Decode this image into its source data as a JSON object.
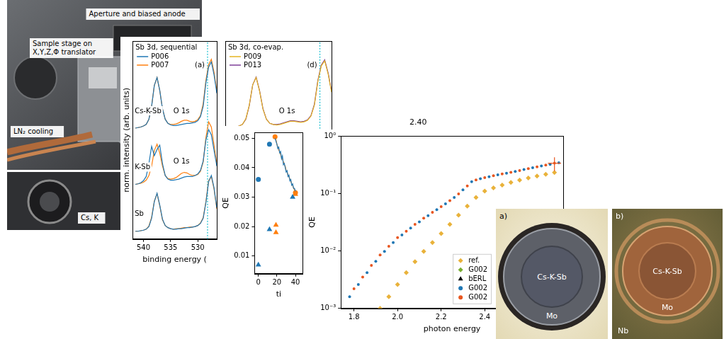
{
  "chart_data": [
    {
      "type": "line",
      "title": "Sb 3d, sequential",
      "panel_label": "(a)",
      "x_label": "binding energy (",
      "y_label": "norm. intensity (arb. units)",
      "xlim": [
        542,
        526.5
      ],
      "xticks": [
        540,
        535,
        530
      ],
      "ylim": [
        -0.1,
        3.7
      ],
      "tick_labels": "x",
      "grid": false,
      "legend": "upper left",
      "reference_x": 528.2,
      "x": [
        541.5,
        541,
        540.5,
        540,
        539.5,
        539,
        538.5,
        538,
        537.5,
        537,
        536.5,
        536,
        535.5,
        535,
        534.5,
        534,
        533.5,
        533,
        532.5,
        532,
        531.5,
        531,
        530.5,
        530,
        529.5,
        529,
        528.5,
        528,
        527.5,
        527,
        526.5
      ],
      "rows": [
        {
          "label": "Cs-K-Sb",
          "series": [
            {
              "name": "P006",
              "color": "#1f77b4",
              "values": [
                2.03,
                2.04,
                2.05,
                2.07,
                2.1,
                2.2,
                2.45,
                2.85,
                3.0,
                2.75,
                2.4,
                2.2,
                2.12,
                2.09,
                2.08,
                2.08,
                2.09,
                2.1,
                2.11,
                2.12,
                2.12,
                2.13,
                2.14,
                2.17,
                2.25,
                2.45,
                2.9,
                3.2,
                3.3,
                3.05,
                2.7
              ]
            },
            {
              "name": "P007",
              "color": "#ff7f0e",
              "values": [
                2.03,
                2.04,
                2.05,
                2.07,
                2.1,
                2.2,
                2.45,
                2.85,
                3.0,
                2.75,
                2.4,
                2.2,
                2.12,
                2.1,
                2.1,
                2.11,
                2.13,
                2.16,
                2.18,
                2.18,
                2.16,
                2.15,
                2.16,
                2.19,
                2.27,
                2.5,
                2.95,
                3.25,
                3.35,
                3.1,
                2.75
              ]
            }
          ]
        },
        {
          "label": "K-Sb",
          "series": [
            {
              "name": "P006",
              "color": "#1f77b4",
              "values": [
                0.95,
                0.96,
                0.98,
                1.02,
                1.1,
                1.35,
                1.68,
                1.5,
                1.62,
                1.7,
                1.35,
                1.12,
                1.05,
                1.03,
                1.03,
                1.04,
                1.05,
                1.07,
                1.09,
                1.1,
                1.1,
                1.1,
                1.12,
                1.15,
                1.22,
                1.4,
                1.8,
                2.0,
                1.9,
                1.6,
                1.3
              ]
            },
            {
              "name": "P007",
              "color": "#ff7f0e",
              "values": [
                0.95,
                0.96,
                0.97,
                0.99,
                1.03,
                1.12,
                1.3,
                1.6,
                1.72,
                1.55,
                1.3,
                1.12,
                1.06,
                1.05,
                1.06,
                1.08,
                1.12,
                1.16,
                1.18,
                1.17,
                1.14,
                1.12,
                1.12,
                1.14,
                1.2,
                1.38,
                1.85,
                2.15,
                2.05,
                1.7,
                1.35
              ]
            }
          ]
        },
        {
          "label": "Sb",
          "series": [
            {
              "name": "P006",
              "color": "#1f77b4",
              "values": [
                0.05,
                0.05,
                0.06,
                0.07,
                0.09,
                0.14,
                0.3,
                0.62,
                0.78,
                0.55,
                0.28,
                0.16,
                0.12,
                0.1,
                0.09,
                0.09,
                0.1,
                0.1,
                0.11,
                0.12,
                0.12,
                0.13,
                0.14,
                0.16,
                0.2,
                0.3,
                0.6,
                1.0,
                1.12,
                0.88,
                0.5
              ]
            },
            {
              "name": "P007",
              "color": "#ff7f0e",
              "values": [
                0.05,
                0.05,
                0.06,
                0.07,
                0.09,
                0.15,
                0.32,
                0.63,
                0.77,
                0.54,
                0.27,
                0.16,
                0.12,
                0.1,
                0.09,
                0.1,
                0.1,
                0.11,
                0.12,
                0.12,
                0.13,
                0.13,
                0.14,
                0.16,
                0.21,
                0.31,
                0.62,
                1.02,
                1.1,
                0.86,
                0.48
              ]
            }
          ]
        }
      ],
      "annotations": [
        {
          "text": "O 1s",
          "x": 533,
          "y": 2.35
        },
        {
          "text": "O 1s",
          "x": 533,
          "y": 1.38
        }
      ]
    },
    {
      "type": "line",
      "title": "Sb 3d, co-evap.",
      "panel_label": "(d)",
      "xlim": [
        542,
        526.5
      ],
      "ylim": [
        -0.1,
        3.7
      ],
      "tick_labels": false,
      "grid": false,
      "legend": "upper left",
      "reference_x": 528.2,
      "x": [
        541.5,
        541,
        540.5,
        540,
        539.5,
        539,
        538.5,
        538,
        537.5,
        537,
        536.5,
        536,
        535.5,
        535,
        534.5,
        534,
        533.5,
        533,
        532.5,
        532,
        531.5,
        531,
        530.5,
        530,
        529.5,
        529,
        528.5,
        528,
        527.5,
        527,
        526.5
      ],
      "series": [
        {
          "name": "P009",
          "color": "#e6b422",
          "values": [
            2.03,
            2.04,
            2.05,
            2.07,
            2.1,
            2.21,
            2.47,
            2.86,
            3.0,
            2.74,
            2.39,
            2.2,
            2.12,
            2.1,
            2.09,
            2.1,
            2.12,
            2.14,
            2.16,
            2.16,
            2.15,
            2.14,
            2.15,
            2.18,
            2.26,
            2.47,
            2.92,
            3.22,
            3.32,
            3.07,
            2.72
          ]
        },
        {
          "name": "P013",
          "color": "#7e3f98",
          "values": [
            2.03,
            2.04,
            2.05,
            2.07,
            2.1,
            2.2,
            2.46,
            2.86,
            3.01,
            2.75,
            2.4,
            2.2,
            2.12,
            2.1,
            2.1,
            2.11,
            2.13,
            2.15,
            2.17,
            2.17,
            2.16,
            2.15,
            2.16,
            2.19,
            2.27,
            2.49,
            2.94,
            3.24,
            3.34,
            3.09,
            2.74
          ]
        }
      ],
      "annotations": [
        {
          "text": "O 1s",
          "x": 533,
          "y": 2.35
        }
      ]
    },
    {
      "type": "scatter",
      "x_label": "ti",
      "y_label": "QE",
      "xlim": [
        -4,
        48
      ],
      "xticks": [
        0,
        20,
        40
      ],
      "ylim": [
        0.004,
        0.052
      ],
      "yticks": [
        0.01,
        0.02,
        0.03,
        0.04,
        0.05
      ],
      "grid": false,
      "series": [
        {
          "color": "#1f77b4",
          "marker": "circle",
          "line_style": "none",
          "x": [
            0,
            12
          ],
          "values": [
            0.036,
            0.048
          ]
        },
        {
          "color": "#1f77b4",
          "marker": "triangle",
          "line_style": "none",
          "x": [
            0,
            12,
            37
          ],
          "values": [
            0.007,
            0.019,
            0.03
          ]
        },
        {
          "color": "#ff7f0e",
          "marker": "triangle",
          "line_style": "none",
          "x": [
            19,
            19,
            40
          ],
          "values": [
            0.018,
            0.0205,
            0.031
          ]
        },
        {
          "color": "#1f77b4",
          "marker": "none",
          "line_style": "solid",
          "x": [
            18,
            19,
            20,
            21,
            22,
            23,
            24,
            25,
            26,
            27,
            28,
            29,
            30,
            31,
            32,
            33,
            34,
            35,
            36,
            37,
            38,
            39,
            40
          ],
          "values": [
            0.05,
            0.049,
            0.048,
            0.0465,
            0.047,
            0.045,
            0.0455,
            0.043,
            0.044,
            0.041,
            0.0415,
            0.04,
            0.0385,
            0.039,
            0.037,
            0.0375,
            0.0355,
            0.036,
            0.034,
            0.0345,
            0.033,
            0.033,
            0.032
          ]
        },
        {
          "color": "#ff7f0e",
          "marker": "none",
          "line_style": "solid",
          "x": [
            18,
            19,
            20,
            21,
            22,
            23,
            24,
            25,
            26,
            27,
            28,
            29,
            30,
            31,
            32,
            33,
            34,
            35,
            36,
            37,
            38,
            39,
            40
          ],
          "values": [
            0.0505,
            0.0495,
            0.048,
            0.047,
            0.046,
            0.0455,
            0.0445,
            0.0435,
            0.043,
            0.042,
            0.041,
            0.0405,
            0.039,
            0.0385,
            0.0375,
            0.037,
            0.036,
            0.0355,
            0.0345,
            0.034,
            0.033,
            0.0325,
            0.0315
          ]
        },
        {
          "color": "#ff7f0e",
          "marker": "circle",
          "line_style": "none",
          "x": [
            18,
            40
          ],
          "values": [
            0.0505,
            0.0315
          ]
        }
      ]
    },
    {
      "type": "scatter",
      "log": "y",
      "x_label": "photon energy",
      "y_label": "QE",
      "xlim": [
        1.74,
        2.76
      ],
      "xticks": [
        1.8,
        {
          "value": 2,
          "label": "2.0"
        },
        2.2,
        2.4
      ],
      "ylim": [
        0.001,
        1
      ],
      "yticks": [
        {
          "value": 0.001,
          "label": "10⁻³"
        },
        {
          "value": 0.01,
          "label": "10⁻²"
        },
        {
          "value": 0.1,
          "label": "10⁻¹"
        },
        {
          "value": 1,
          "label": "10⁰"
        }
      ],
      "grid": false,
      "legend": "lower right",
      "series": [
        {
          "name": "ref.",
          "color": "#e9b23a",
          "marker": "diamond",
          "line_style": "none",
          "x": [
            1.92,
            1.96,
            2.0,
            2.04,
            2.08,
            2.12,
            2.16,
            2.2,
            2.24,
            2.28,
            2.32,
            2.36,
            2.4,
            2.44,
            2.48,
            2.52,
            2.56,
            2.6,
            2.64,
            2.68,
            2.72
          ],
          "values": [
            0.001,
            0.0016,
            0.0026,
            0.0042,
            0.0065,
            0.0098,
            0.014,
            0.02,
            0.029,
            0.042,
            0.06,
            0.085,
            0.11,
            0.125,
            0.14,
            0.155,
            0.17,
            0.185,
            0.2,
            0.215,
            0.23
          ]
        },
        {
          "name": "G002",
          "color": "#77ac30",
          "marker": "diamond",
          "line_style": "none",
          "x": [],
          "values": []
        },
        {
          "name": "bERL",
          "color": "#000000",
          "marker": "triangle",
          "line_style": "none",
          "x": [],
          "values": []
        },
        {
          "name": "G002",
          "color": "#1f77b4",
          "marker": "circle",
          "line_style": "none",
          "x": [
            1.78,
            1.82,
            1.86,
            1.9,
            1.94,
            1.98,
            2.02,
            2.06,
            2.1,
            2.14,
            2.18,
            2.22,
            2.26,
            2.3,
            2.34,
            2.38,
            2.42,
            2.46,
            2.5,
            2.54,
            2.58,
            2.62,
            2.66,
            2.7,
            2.74
          ],
          "values": [
            0.0016,
            0.0026,
            0.0042,
            0.0066,
            0.0098,
            0.014,
            0.019,
            0.025,
            0.032,
            0.041,
            0.052,
            0.066,
            0.085,
            0.115,
            0.16,
            0.18,
            0.195,
            0.21,
            0.225,
            0.24,
            0.26,
            0.28,
            0.3,
            0.32,
            0.34
          ]
        },
        {
          "name": "G002",
          "color": "#e8561f",
          "marker": "circle",
          "line_style": "none",
          "x": [
            1.8,
            1.84,
            1.88,
            1.92,
            1.96,
            2.0,
            2.04,
            2.08,
            2.12,
            2.16,
            2.2,
            2.24,
            2.28,
            2.32,
            2.36,
            2.4,
            2.44,
            2.48,
            2.52,
            2.56,
            2.6,
            2.64,
            2.68,
            2.72
          ],
          "values": [
            0.0022,
            0.0035,
            0.0056,
            0.0085,
            0.012,
            0.017,
            0.022,
            0.029,
            0.037,
            0.047,
            0.059,
            0.075,
            0.098,
            0.135,
            0.172,
            0.188,
            0.203,
            0.218,
            0.233,
            0.25,
            0.27,
            0.29,
            0.31,
            0.335
          ],
          "xerr": [
            null,
            null,
            null,
            null,
            null,
            null,
            null,
            null,
            null,
            null,
            null,
            null,
            null,
            null,
            null,
            null,
            null,
            null,
            null,
            null,
            null,
            null,
            null,
            0.03
          ],
          "yerr": [
            null,
            null,
            null,
            null,
            null,
            null,
            null,
            null,
            null,
            null,
            null,
            null,
            null,
            null,
            null,
            null,
            null,
            null,
            null,
            null,
            null,
            null,
            null,
            0.09
          ]
        }
      ]
    }
  ],
  "photos": {
    "setup": {
      "labels": [
        "Aperture and biased anode",
        "Sample stage on X,Y,Z,Φ translator",
        "LN₂ cooling"
      ]
    },
    "setup_lower": {
      "labels": [
        "Cs, K"
      ]
    },
    "sample_a": {
      "panel_label": "a)",
      "center_label": "Cs-K-Sb",
      "ring_label": "Mo"
    },
    "sample_b": {
      "panel_label": "b)",
      "center_label": "Cs-K-Sb",
      "ring_label": "Mo",
      "outer_label": "Nb"
    }
  },
  "labels": [
    "2.40"
  ]
}
